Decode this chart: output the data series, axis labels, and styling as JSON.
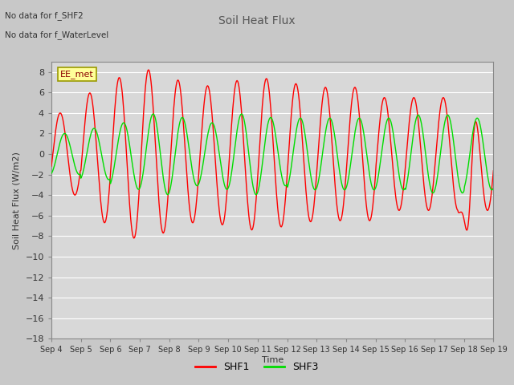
{
  "title": "Soil Heat Flux",
  "ylabel": "Soil Heat Flux (W/m2)",
  "xlabel": "Time",
  "ylim": [
    -18,
    9
  ],
  "yticks": [
    -18,
    -16,
    -14,
    -12,
    -10,
    -8,
    -6,
    -4,
    -2,
    0,
    2,
    4,
    6,
    8
  ],
  "xtick_labels": [
    "Sep 4",
    "Sep 5",
    "Sep 6",
    "Sep 7",
    "Sep 8",
    "Sep 9",
    "Sep 10",
    "Sep 11",
    "Sep 12",
    "Sep 13",
    "Sep 14",
    "Sep 15",
    "Sep 16",
    "Sep 17",
    "Sep 18",
    "Sep 19"
  ],
  "no_data_text1": "No data for f_SHF2",
  "no_data_text2": "No data for f_WaterLevel",
  "legend_box_label": "EE_met",
  "shf1_color": "#FF0000",
  "shf3_color": "#00DD00",
  "fig_bg_color": "#C8C8C8",
  "plot_bg_color": "#D8D8D8",
  "grid_color": "#FFFFFF",
  "legend_box_facecolor": "#FFFF99",
  "legend_box_edgecolor": "#999900",
  "title_color": "#555555",
  "label_color": "#333333"
}
